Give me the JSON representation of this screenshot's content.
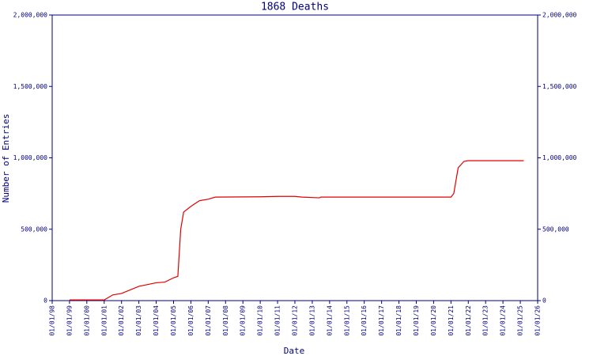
{
  "chart_data": {
    "type": "line",
    "title": "1868 Deaths",
    "x_label": "Date",
    "y_label": "Number of Entries",
    "color": "#e00000",
    "x": [
      "01/01/99",
      "01/01/01",
      "07/01/01",
      "01/01/02",
      "01/01/03",
      "01/01/04",
      "07/01/04",
      "01/01/05",
      "04/01/05",
      "06/01/05",
      "08/01/05",
      "01/01/06",
      "07/01/06",
      "01/01/07",
      "06/01/07",
      "01/01/10",
      "01/01/11",
      "01/01/12",
      "06/01/12",
      "06/01/13",
      "07/01/13",
      "01/01/21",
      "03/01/21",
      "06/01/21",
      "10/01/21",
      "01/01/22",
      "01/01/25",
      "03/15/25"
    ],
    "values": [
      5000,
      5000,
      40000,
      50000,
      100000,
      125000,
      130000,
      160000,
      170000,
      500000,
      620000,
      660000,
      700000,
      710000,
      725000,
      727000,
      730000,
      730000,
      725000,
      720000,
      725000,
      725000,
      750000,
      930000,
      975000,
      980000,
      980000,
      980000
    ],
    "xlim": [
      "01/01/98",
      "01/01/26"
    ],
    "xticks": [
      "01/01/98",
      "01/01/99",
      "01/01/00",
      "01/01/01",
      "01/01/02",
      "01/01/03",
      "01/01/04",
      "01/01/05",
      "01/01/06",
      "01/01/07",
      "01/01/08",
      "01/01/09",
      "01/01/10",
      "01/01/11",
      "01/01/12",
      "01/01/13",
      "01/01/14",
      "01/01/15",
      "01/01/16",
      "01/01/17",
      "01/01/18",
      "01/01/19",
      "01/01/20",
      "01/01/21",
      "01/01/22",
      "01/01/23",
      "01/01/24",
      "01/01/25",
      "01/01/26"
    ],
    "ylim": [
      0,
      2000000
    ],
    "yticks": [
      {
        "value": 0,
        "label": "0"
      },
      {
        "value": 500000,
        "label": "500,000"
      },
      {
        "value": 1000000,
        "label": "1,000,000"
      },
      {
        "value": 1500000,
        "label": "1,500,000"
      },
      {
        "value": 2000000,
        "label": "2,000,000"
      }
    ]
  }
}
